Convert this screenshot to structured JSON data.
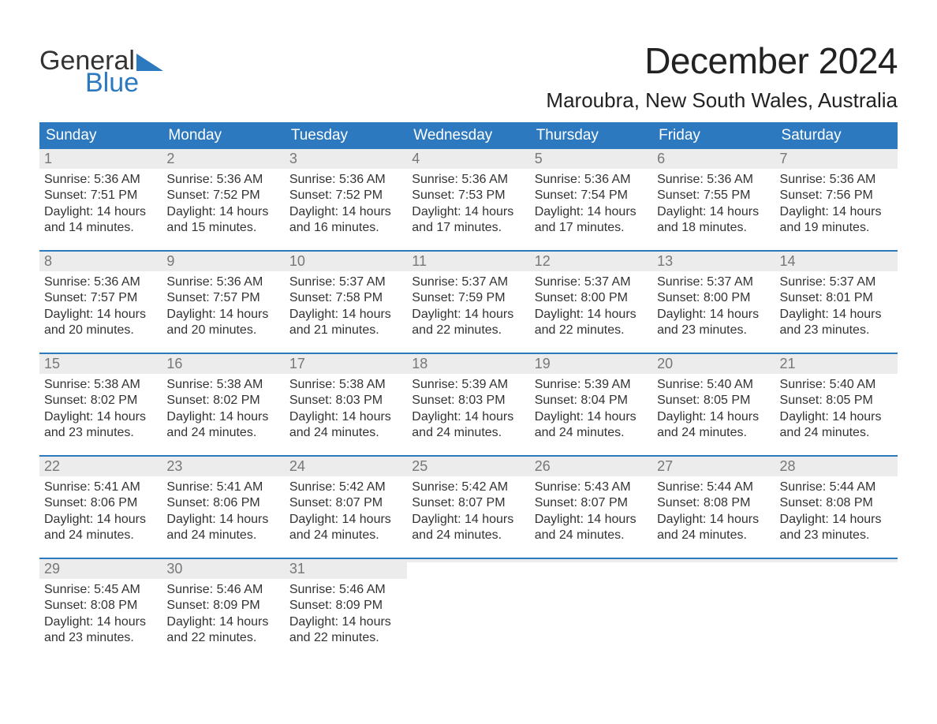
{
  "logo": {
    "word1": "General",
    "word2": "Blue",
    "accent_color": "#2d79c0"
  },
  "title": "December 2024",
  "location": "Maroubra, New South Wales, Australia",
  "weekdays": [
    "Sunday",
    "Monday",
    "Tuesday",
    "Wednesday",
    "Thursday",
    "Friday",
    "Saturday"
  ],
  "style": {
    "header_bg": "#2d79c0",
    "header_text": "#ffffff",
    "daynum_bg": "#ececec",
    "daynum_color": "#777777",
    "body_text": "#333333",
    "row_border": "#2d79c0",
    "page_bg": "#ffffff",
    "title_fontsize": 46,
    "location_fontsize": 26,
    "weekday_fontsize": 19,
    "body_fontsize": 16
  },
  "weeks": [
    [
      {
        "n": "1",
        "sunrise": "Sunrise: 5:36 AM",
        "sunset": "Sunset: 7:51 PM",
        "daylight": "Daylight: 14 hours and 14 minutes."
      },
      {
        "n": "2",
        "sunrise": "Sunrise: 5:36 AM",
        "sunset": "Sunset: 7:52 PM",
        "daylight": "Daylight: 14 hours and 15 minutes."
      },
      {
        "n": "3",
        "sunrise": "Sunrise: 5:36 AM",
        "sunset": "Sunset: 7:52 PM",
        "daylight": "Daylight: 14 hours and 16 minutes."
      },
      {
        "n": "4",
        "sunrise": "Sunrise: 5:36 AM",
        "sunset": "Sunset: 7:53 PM",
        "daylight": "Daylight: 14 hours and 17 minutes."
      },
      {
        "n": "5",
        "sunrise": "Sunrise: 5:36 AM",
        "sunset": "Sunset: 7:54 PM",
        "daylight": "Daylight: 14 hours and 17 minutes."
      },
      {
        "n": "6",
        "sunrise": "Sunrise: 5:36 AM",
        "sunset": "Sunset: 7:55 PM",
        "daylight": "Daylight: 14 hours and 18 minutes."
      },
      {
        "n": "7",
        "sunrise": "Sunrise: 5:36 AM",
        "sunset": "Sunset: 7:56 PM",
        "daylight": "Daylight: 14 hours and 19 minutes."
      }
    ],
    [
      {
        "n": "8",
        "sunrise": "Sunrise: 5:36 AM",
        "sunset": "Sunset: 7:57 PM",
        "daylight": "Daylight: 14 hours and 20 minutes."
      },
      {
        "n": "9",
        "sunrise": "Sunrise: 5:36 AM",
        "sunset": "Sunset: 7:57 PM",
        "daylight": "Daylight: 14 hours and 20 minutes."
      },
      {
        "n": "10",
        "sunrise": "Sunrise: 5:37 AM",
        "sunset": "Sunset: 7:58 PM",
        "daylight": "Daylight: 14 hours and 21 minutes."
      },
      {
        "n": "11",
        "sunrise": "Sunrise: 5:37 AM",
        "sunset": "Sunset: 7:59 PM",
        "daylight": "Daylight: 14 hours and 22 minutes."
      },
      {
        "n": "12",
        "sunrise": "Sunrise: 5:37 AM",
        "sunset": "Sunset: 8:00 PM",
        "daylight": "Daylight: 14 hours and 22 minutes."
      },
      {
        "n": "13",
        "sunrise": "Sunrise: 5:37 AM",
        "sunset": "Sunset: 8:00 PM",
        "daylight": "Daylight: 14 hours and 23 minutes."
      },
      {
        "n": "14",
        "sunrise": "Sunrise: 5:37 AM",
        "sunset": "Sunset: 8:01 PM",
        "daylight": "Daylight: 14 hours and 23 minutes."
      }
    ],
    [
      {
        "n": "15",
        "sunrise": "Sunrise: 5:38 AM",
        "sunset": "Sunset: 8:02 PM",
        "daylight": "Daylight: 14 hours and 23 minutes."
      },
      {
        "n": "16",
        "sunrise": "Sunrise: 5:38 AM",
        "sunset": "Sunset: 8:02 PM",
        "daylight": "Daylight: 14 hours and 24 minutes."
      },
      {
        "n": "17",
        "sunrise": "Sunrise: 5:38 AM",
        "sunset": "Sunset: 8:03 PM",
        "daylight": "Daylight: 14 hours and 24 minutes."
      },
      {
        "n": "18",
        "sunrise": "Sunrise: 5:39 AM",
        "sunset": "Sunset: 8:03 PM",
        "daylight": "Daylight: 14 hours and 24 minutes."
      },
      {
        "n": "19",
        "sunrise": "Sunrise: 5:39 AM",
        "sunset": "Sunset: 8:04 PM",
        "daylight": "Daylight: 14 hours and 24 minutes."
      },
      {
        "n": "20",
        "sunrise": "Sunrise: 5:40 AM",
        "sunset": "Sunset: 8:05 PM",
        "daylight": "Daylight: 14 hours and 24 minutes."
      },
      {
        "n": "21",
        "sunrise": "Sunrise: 5:40 AM",
        "sunset": "Sunset: 8:05 PM",
        "daylight": "Daylight: 14 hours and 24 minutes."
      }
    ],
    [
      {
        "n": "22",
        "sunrise": "Sunrise: 5:41 AM",
        "sunset": "Sunset: 8:06 PM",
        "daylight": "Daylight: 14 hours and 24 minutes."
      },
      {
        "n": "23",
        "sunrise": "Sunrise: 5:41 AM",
        "sunset": "Sunset: 8:06 PM",
        "daylight": "Daylight: 14 hours and 24 minutes."
      },
      {
        "n": "24",
        "sunrise": "Sunrise: 5:42 AM",
        "sunset": "Sunset: 8:07 PM",
        "daylight": "Daylight: 14 hours and 24 minutes."
      },
      {
        "n": "25",
        "sunrise": "Sunrise: 5:42 AM",
        "sunset": "Sunset: 8:07 PM",
        "daylight": "Daylight: 14 hours and 24 minutes."
      },
      {
        "n": "26",
        "sunrise": "Sunrise: 5:43 AM",
        "sunset": "Sunset: 8:07 PM",
        "daylight": "Daylight: 14 hours and 24 minutes."
      },
      {
        "n": "27",
        "sunrise": "Sunrise: 5:44 AM",
        "sunset": "Sunset: 8:08 PM",
        "daylight": "Daylight: 14 hours and 24 minutes."
      },
      {
        "n": "28",
        "sunrise": "Sunrise: 5:44 AM",
        "sunset": "Sunset: 8:08 PM",
        "daylight": "Daylight: 14 hours and 23 minutes."
      }
    ],
    [
      {
        "n": "29",
        "sunrise": "Sunrise: 5:45 AM",
        "sunset": "Sunset: 8:08 PM",
        "daylight": "Daylight: 14 hours and 23 minutes."
      },
      {
        "n": "30",
        "sunrise": "Sunrise: 5:46 AM",
        "sunset": "Sunset: 8:09 PM",
        "daylight": "Daylight: 14 hours and 22 minutes."
      },
      {
        "n": "31",
        "sunrise": "Sunrise: 5:46 AM",
        "sunset": "Sunset: 8:09 PM",
        "daylight": "Daylight: 14 hours and 22 minutes."
      },
      {
        "empty": true
      },
      {
        "empty": true
      },
      {
        "empty": true
      },
      {
        "empty": true
      }
    ]
  ]
}
